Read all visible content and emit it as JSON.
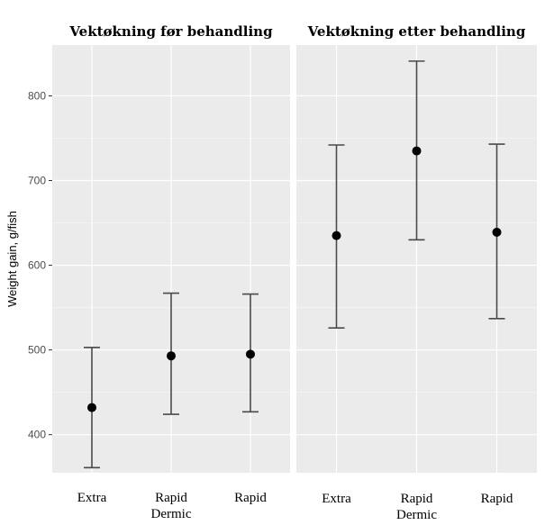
{
  "chart_data": {
    "type": "errorbar",
    "ylabel": "Weight gain, g/fish",
    "ylim": [
      355,
      860
    ],
    "yticks": [
      400,
      500,
      600,
      700,
      800
    ],
    "panels": [
      {
        "title": "Vektøkning før behandling",
        "categories": [
          [
            "Extra"
          ],
          [
            "Rapid",
            "Dermic"
          ],
          [
            "Rapid"
          ]
        ],
        "values": [
          432,
          493,
          495
        ],
        "lower": [
          361,
          424,
          427
        ],
        "upper": [
          503,
          567,
          566
        ]
      },
      {
        "title": "Vektøkning etter behandling",
        "categories": [
          [
            "Extra"
          ],
          [
            "Rapid",
            "Dermic"
          ],
          [
            "Rapid"
          ]
        ],
        "values": [
          635,
          735,
          639
        ],
        "lower": [
          526,
          630,
          537
        ],
        "upper": [
          742,
          841,
          743
        ]
      }
    ]
  }
}
